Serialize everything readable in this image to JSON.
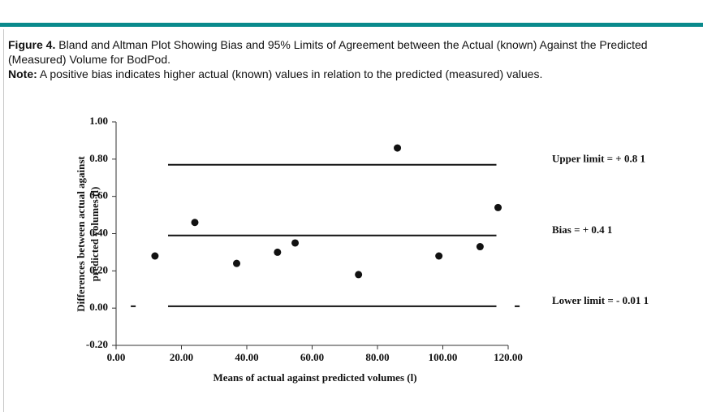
{
  "caption": {
    "label": "Figure 4.",
    "text": "Bland and Altman Plot Showing Bias and 95% Limits of Agreement between the Actual (known) Against the Predicted (Measured) Volume for BodPod.",
    "note_label": "Note:",
    "note": "A positive bias indicates higher actual (known) values in relation to the predicted (measured) values."
  },
  "chart_data": {
    "type": "scatter",
    "x_label": "Means of actual against predicted volumes (l)",
    "y_label": [
      "Differences between actual against",
      "predicted volumes (l)"
    ],
    "x": [
      11.9,
      24.1,
      36.9,
      49.4,
      54.8,
      74.2,
      86.1,
      98.8,
      111.4,
      116.9
    ],
    "values": [
      0.28,
      0.46,
      0.24,
      0.3,
      0.35,
      0.18,
      0.86,
      0.28,
      0.33,
      0.54
    ],
    "color": "#111111",
    "xlim": [
      0,
      120
    ],
    "ylim": [
      -0.2,
      1.0
    ],
    "xticks": [
      {
        "value": 0,
        "label": "0.00"
      },
      {
        "value": 20,
        "label": "20.00"
      },
      {
        "value": 40,
        "label": "40.00"
      },
      {
        "value": 60,
        "label": "60.00"
      },
      {
        "value": 80,
        "label": "80.00"
      },
      {
        "value": 100,
        "label": "100.00"
      },
      {
        "value": 120,
        "label": "120.00"
      }
    ],
    "yticks": [
      {
        "value": -0.2,
        "label": "-0.20"
      },
      {
        "value": 0,
        "label": "0.00"
      },
      {
        "value": 0.2,
        "label": "0.20"
      },
      {
        "value": 0.4,
        "label": "0.40"
      },
      {
        "value": 0.6,
        "label": "0.60"
      },
      {
        "value": 0.8,
        "label": "0.80"
      },
      {
        "value": 1.0,
        "label": "1.00"
      }
    ],
    "hlines": [
      {
        "y": 0.77,
        "segments": [
          [
            15.9,
            116.4
          ]
        ],
        "annotation": "Upper limit = + 0.8 1"
      },
      {
        "y": 0.39,
        "segments": [
          [
            15.9,
            116.4
          ]
        ],
        "annotation": "Bias = + 0.4 1"
      },
      {
        "y": 0.01,
        "segments": [
          [
            4.5,
            6.0
          ],
          [
            15.9,
            116.4
          ],
          [
            122.0,
            123.5
          ]
        ],
        "annotation": "Lower limit = - 0.01 1"
      }
    ]
  }
}
